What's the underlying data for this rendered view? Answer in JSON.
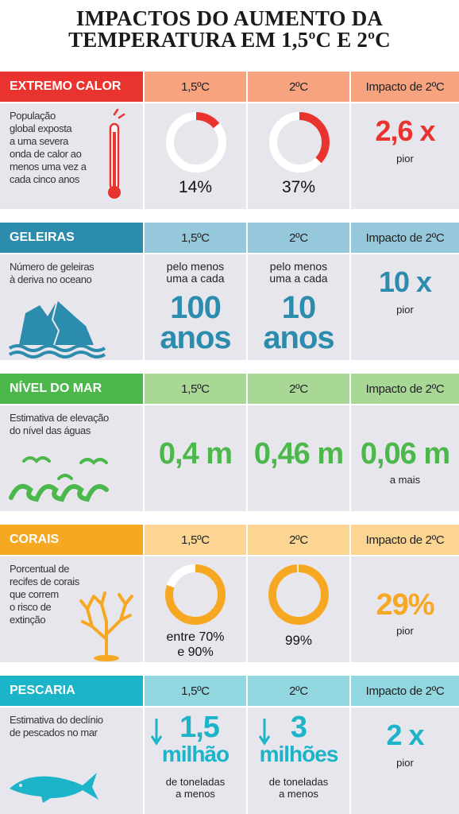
{
  "title": {
    "line1": "IMPACTOS DO AUMENTO DA",
    "line2": "TEMPERATURA EM 1,5ºC E 2ºC"
  },
  "columns": {
    "c1": "1,5ºC",
    "c2": "2ºC",
    "c3": "Impacto de 2ºC"
  },
  "colors": {
    "calor": "#e8332f",
    "calor_light": "#f7a37f",
    "geleiras": "#2b8cad",
    "geleiras_light": "#95c8da",
    "mar": "#4cb84c",
    "mar_light": "#a8d796",
    "corais": "#f7a823",
    "corais_light": "#fbd591",
    "pescaria": "#1bb4c8",
    "pescaria_light": "#92d6e0"
  },
  "calor": {
    "label": "EXTREMO CALOR",
    "desc": [
      "População",
      "global exposta",
      "a uma severa",
      "onda de calor ao",
      "menos uma vez a",
      "cada cinco anos"
    ],
    "v1": "14%",
    "v1_fraction": 0.14,
    "v2": "37%",
    "v2_fraction": 0.37,
    "impact": "2,6 x",
    "impact_sub": "pior"
  },
  "geleiras": {
    "label": "GELEIRAS",
    "desc": [
      "Número de geleiras",
      "à deriva no oceano"
    ],
    "pre1": [
      "pelo menos",
      "uma a cada"
    ],
    "big1": [
      "100",
      "anos"
    ],
    "pre2": [
      "pelo menos",
      "uma a cada"
    ],
    "big2": [
      "10",
      "anos"
    ],
    "impact": "10 x",
    "impact_sub": "pior"
  },
  "mar": {
    "label": "NÍVEL DO MAR",
    "desc": [
      "Estimativa de elevação",
      "do nível das águas"
    ],
    "v1": "0,4 m",
    "v2": "0,46 m",
    "impact": "0,06 m",
    "impact_sub": "a mais"
  },
  "corais": {
    "label": "CORAIS",
    "desc": [
      "Porcentual de",
      "recifes de corais",
      "que correm",
      "o risco de",
      "extinção"
    ],
    "v1": [
      "entre 70%",
      "e 90%"
    ],
    "v1_fraction": 0.8,
    "v2": "99%",
    "v2_fraction": 0.99,
    "impact": "29%",
    "impact_sub": "pior"
  },
  "pescaria": {
    "label": "PESCARIA",
    "desc": [
      "Estimativa do declínio",
      "de pescados no mar"
    ],
    "v1": [
      "1,5",
      "milhão"
    ],
    "v1_sub": [
      "de toneladas",
      "a menos"
    ],
    "v2": [
      "3",
      "milhões"
    ],
    "v2_sub": [
      "de toneladas",
      "a menos"
    ],
    "impact": "2 x",
    "impact_sub": "pior"
  }
}
